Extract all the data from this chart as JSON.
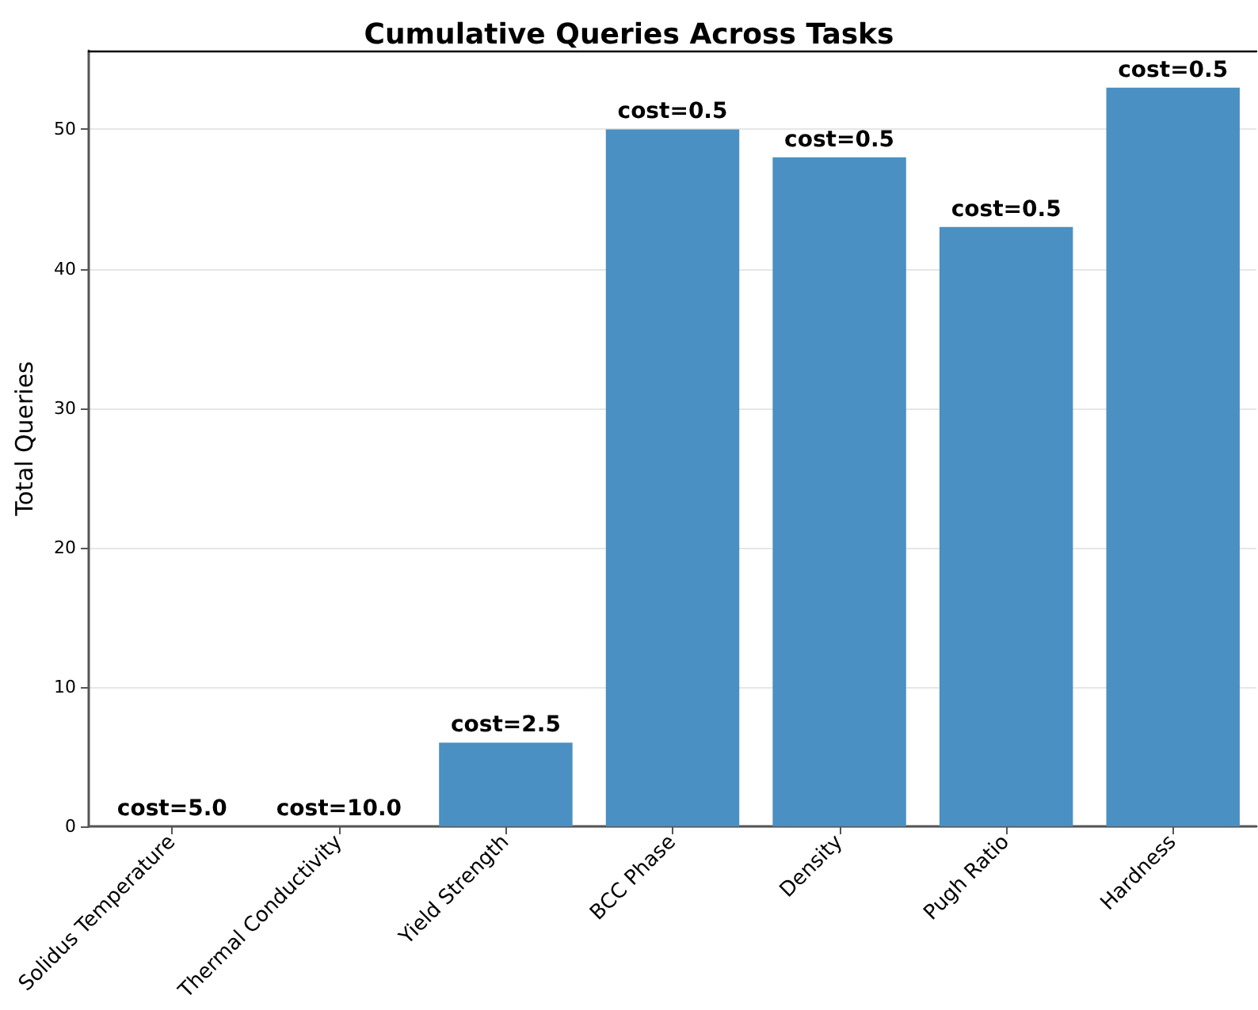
{
  "chart_data": {
    "type": "bar",
    "title": "Cumulative Queries Across Tasks",
    "ylabel": "Total Queries",
    "categories": [
      "Solidus Temperature",
      "Thermal Conductivity",
      "Yield Strength",
      "BCC Phase",
      "Density",
      "Pugh Ratio",
      "Hardness"
    ],
    "values": [
      0,
      0,
      6,
      50,
      48,
      43,
      53
    ],
    "annotations": [
      {
        "text": "cost=5.0",
        "x": "Solidus Temperature",
        "y": 0
      },
      {
        "text": "cost=10.0",
        "x": "Thermal Conductivity",
        "y": 0
      },
      {
        "text": "cost=2.5",
        "x": "Yield Strength",
        "y": 6
      },
      {
        "text": "cost=0.5",
        "x": "BCC Phase",
        "y": 50
      },
      {
        "text": "cost=0.5",
        "x": "Density",
        "y": 48
      },
      {
        "text": "cost=0.5",
        "x": "Pugh Ratio",
        "y": 43
      },
      {
        "text": "cost=0.5",
        "x": "Hardness",
        "y": 53
      }
    ],
    "color": "#4a90c2",
    "ylim": [
      0,
      55.65
    ],
    "yticks": [
      0,
      10,
      20,
      30,
      40,
      50
    ],
    "grid": "y"
  }
}
